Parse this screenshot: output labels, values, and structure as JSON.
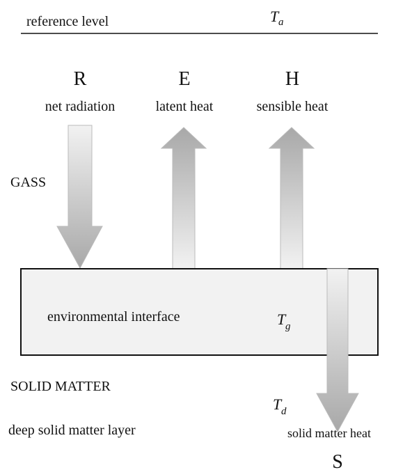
{
  "reference_level": {
    "label": "reference level",
    "symbol": "T",
    "subscript": "a"
  },
  "fluxes": [
    {
      "letter": "R",
      "label": "net radiation"
    },
    {
      "letter": "E",
      "label": "latent heat"
    },
    {
      "letter": "H",
      "label": "sensible heat"
    },
    {
      "letter": "S",
      "label": "solid matter heat"
    }
  ],
  "layers": {
    "gas": "GASS",
    "interface": {
      "label": "environmental interface",
      "symbol": "T",
      "subscript": "g"
    },
    "solid": "SOLID MATTER",
    "deep": {
      "label": "deep solid matter layer",
      "symbol": "T",
      "subscript": "d"
    }
  }
}
